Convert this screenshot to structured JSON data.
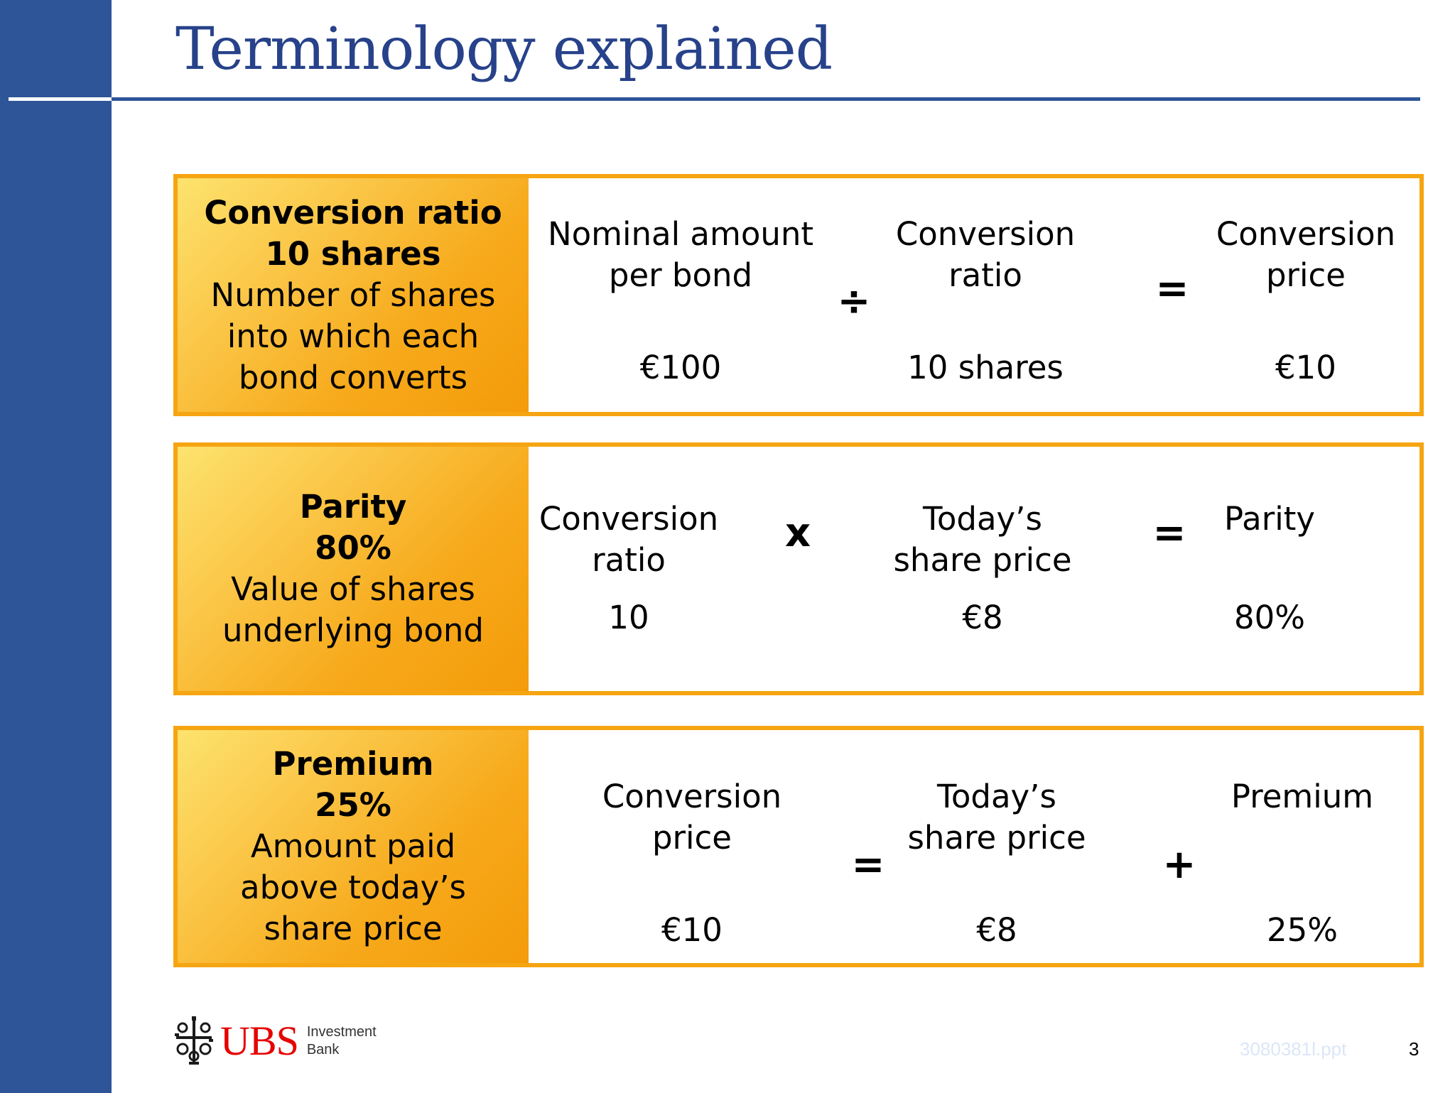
{
  "header": {
    "title": "Terminology explained"
  },
  "panels": [
    {
      "label_title": "Conversion ratio",
      "label_value": "10 shares",
      "label_desc": [
        "Number of shares",
        "into which each",
        "bond converts"
      ],
      "terms": [
        {
          "heading": [
            "Nominal amount",
            "per bond"
          ],
          "value": "€100"
        },
        {
          "heading": [
            "Conversion",
            "ratio"
          ],
          "value": "10 shares"
        },
        {
          "heading": [
            "Conversion",
            "price"
          ],
          "value": "€10"
        }
      ],
      "operators": [
        "÷",
        "="
      ]
    },
    {
      "label_title": "Parity",
      "label_value": "80%",
      "label_desc": [
        "Value of shares",
        "underlying bond"
      ],
      "terms": [
        {
          "heading": [
            "Conversion",
            "ratio"
          ],
          "value": "10"
        },
        {
          "heading": [
            "Today’s",
            "share price"
          ],
          "value": "€8"
        },
        {
          "heading": [
            "Parity"
          ],
          "value": "80%"
        }
      ],
      "operators": [
        "x",
        "="
      ]
    },
    {
      "label_title": "Premium",
      "label_value": "25%",
      "label_desc": [
        "Amount paid",
        "above today’s",
        "share price"
      ],
      "terms": [
        {
          "heading": [
            "Conversion",
            "price"
          ],
          "value": "€10"
        },
        {
          "heading": [
            "Today’s",
            "share price"
          ],
          "value": "€8"
        },
        {
          "heading": [
            "Premium"
          ],
          "value": "25%"
        }
      ],
      "operators": [
        "=",
        "+"
      ]
    }
  ],
  "footer": {
    "logo_text": "UBS",
    "logo_sub_line1": "Investment",
    "logo_sub_line2": "Bank",
    "file_name": "3080381l.ppt",
    "page_number": "3"
  },
  "colors": {
    "sidebar": "#2e5597",
    "title": "#27428a",
    "panel_border": "#f5a512",
    "label_gradient_start": "#fde36e",
    "label_gradient_end": "#f49b09",
    "logo_red": "#e60000"
  }
}
